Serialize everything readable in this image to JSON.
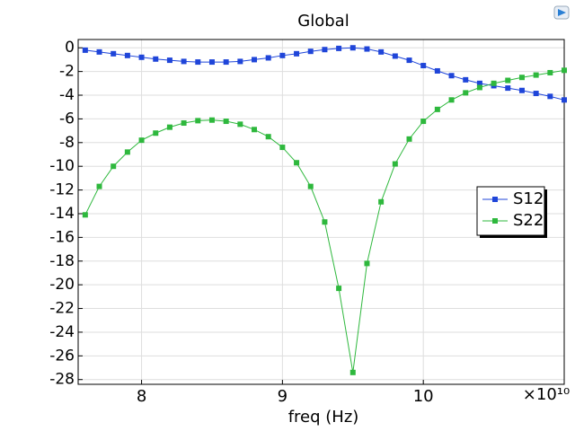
{
  "chart_data": {
    "type": "line",
    "title": "Global",
    "x_label": "freq (Hz)",
    "x_multiplier": "×10¹⁰",
    "x": [
      7.6,
      7.7,
      7.8,
      7.9,
      8.0,
      8.1,
      8.2,
      8.3,
      8.4,
      8.5,
      8.6,
      8.7,
      8.8,
      8.9,
      9.0,
      9.1,
      9.2,
      9.3,
      9.4,
      9.5,
      9.6,
      9.7,
      9.8,
      9.9,
      10.0,
      10.1,
      10.2,
      10.3,
      10.4,
      10.5,
      10.6,
      10.7,
      10.8,
      10.9,
      11.0
    ],
    "series": [
      {
        "name": "S12",
        "color": "#1f45d9",
        "values": [
          -0.2,
          -0.35,
          -0.5,
          -0.65,
          -0.8,
          -0.95,
          -1.05,
          -1.15,
          -1.2,
          -1.2,
          -1.2,
          -1.15,
          -1.0,
          -0.85,
          -0.65,
          -0.5,
          -0.3,
          -0.15,
          -0.05,
          0,
          -0.1,
          -0.35,
          -0.7,
          -1.05,
          -1.5,
          -1.95,
          -2.35,
          -2.7,
          -3.0,
          -3.2,
          -3.4,
          -3.6,
          -3.85,
          -4.1,
          -4.4
        ]
      },
      {
        "name": "S22",
        "color": "#2eb83d",
        "values": [
          -14.1,
          -11.7,
          -10.0,
          -8.8,
          -7.8,
          -7.2,
          -6.7,
          -6.35,
          -6.15,
          -6.1,
          -6.2,
          -6.45,
          -6.9,
          -7.5,
          -8.4,
          -9.7,
          -11.7,
          -14.7,
          -20.3,
          -27.4,
          -18.2,
          -13.0,
          -9.8,
          -7.7,
          -6.2,
          -5.2,
          -4.4,
          -3.8,
          -3.35,
          -3.0,
          -2.75,
          -2.5,
          -2.3,
          -2.1,
          -1.9
        ]
      }
    ],
    "xlim": [
      7.55,
      11.0
    ],
    "xticks": [
      8,
      9,
      10
    ],
    "ylim": [
      -28.4,
      0.7
    ],
    "yticks": [
      0,
      -2,
      -4,
      -6,
      -8,
      -10,
      -12,
      -14,
      -16,
      -18,
      -20,
      -22,
      -24,
      -26,
      -28
    ],
    "grid": true,
    "legend": "right"
  }
}
